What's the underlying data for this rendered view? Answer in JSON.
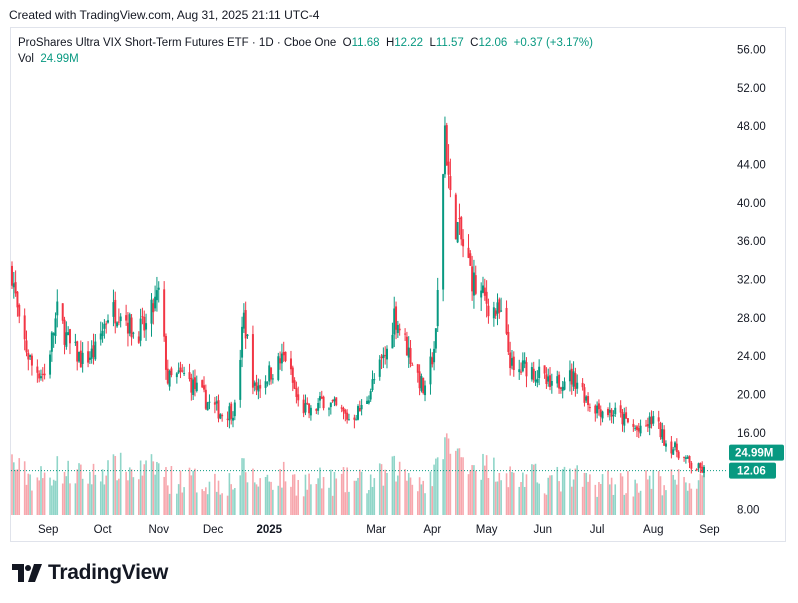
{
  "header": {
    "created_note": "Created with TradingView.com, Aug 31, 2025 21:11 UTC-4"
  },
  "legend": {
    "symbol": "ProShares Ultra VIX Short-Term Futures ETF · 1D · Cboe One",
    "o_label": "O",
    "o_value": "11.68",
    "h_label": "H",
    "h_value": "12.22",
    "l_label": "L",
    "l_value": "11.57",
    "c_label": "C",
    "c_value": "12.06",
    "change": "+0.37 (+3.17%)",
    "vol_label": "Vol",
    "vol_value": "24.99M"
  },
  "badges": {
    "volume": "24.99M",
    "price": "12.06"
  },
  "brand": {
    "name": "TradingView"
  },
  "colors": {
    "up": "#089981",
    "down": "#f23645",
    "up_vol": "#8fd5c8",
    "down_vol": "#f7a7ad",
    "axis_text": "#131722",
    "badge": "#089981"
  },
  "chart_data": {
    "type": "candlestick",
    "title": "ProShares Ultra VIX Short-Term Futures ETF · 1D · Cboe One",
    "y_axis": {
      "ticks": [
        8,
        12,
        16,
        20,
        24,
        28,
        32,
        36,
        40,
        44,
        48,
        52,
        56
      ],
      "tick_labels": [
        "8.00",
        "",
        "16.00",
        "20.00",
        "24.00",
        "28.00",
        "32.00",
        "36.00",
        "40.00",
        "44.00",
        "48.00",
        "52.00",
        "56.00"
      ],
      "range": [
        7,
        58
      ],
      "position": "right"
    },
    "x_axis": {
      "ticks": [
        "Sep",
        "Oct",
        "Nov",
        "Dec",
        "2025",
        "Mar",
        "Apr",
        "May",
        "Jun",
        "Jul",
        "Aug",
        "Sep"
      ]
    },
    "last": {
      "open": 11.68,
      "high": 12.22,
      "low": 11.57,
      "close": 12.06,
      "change": 0.37,
      "change_pct": 3.17,
      "volume": "24.99M"
    },
    "close_series": [
      {
        "date": "2024-08-12",
        "close": 33.0
      },
      {
        "date": "2024-08-16",
        "close": 27.0
      },
      {
        "date": "2024-08-23",
        "close": 23.0
      },
      {
        "date": "2024-08-30",
        "close": 22.0
      },
      {
        "date": "2024-09-06",
        "close": 28.5
      },
      {
        "date": "2024-09-13",
        "close": 25.0
      },
      {
        "date": "2024-09-20",
        "close": 23.5
      },
      {
        "date": "2024-09-27",
        "close": 24.5
      },
      {
        "date": "2024-10-04",
        "close": 28.5
      },
      {
        "date": "2024-10-11",
        "close": 29.0
      },
      {
        "date": "2024-10-18",
        "close": 26.5
      },
      {
        "date": "2024-10-25",
        "close": 27.0
      },
      {
        "date": "2024-11-01",
        "close": 30.5
      },
      {
        "date": "2024-11-06",
        "close": 21.5
      },
      {
        "date": "2024-11-15",
        "close": 22.0
      },
      {
        "date": "2024-11-22",
        "close": 20.5
      },
      {
        "date": "2024-11-29",
        "close": 19.0
      },
      {
        "date": "2024-12-06",
        "close": 18.0
      },
      {
        "date": "2024-12-13",
        "close": 18.5
      },
      {
        "date": "2024-12-18",
        "close": 28.0
      },
      {
        "date": "2024-12-24",
        "close": 20.5
      },
      {
        "date": "2024-12-31",
        "close": 22.0
      },
      {
        "date": "2025-01-10",
        "close": 24.0
      },
      {
        "date": "2025-01-17",
        "close": 19.0
      },
      {
        "date": "2025-01-24",
        "close": 18.0
      },
      {
        "date": "2025-01-31",
        "close": 19.5
      },
      {
        "date": "2025-02-07",
        "close": 18.5
      },
      {
        "date": "2025-02-14",
        "close": 17.5
      },
      {
        "date": "2025-02-21",
        "close": 18.5
      },
      {
        "date": "2025-02-28",
        "close": 21.5
      },
      {
        "date": "2025-03-07",
        "close": 24.5
      },
      {
        "date": "2025-03-11",
        "close": 28.5
      },
      {
        "date": "2025-03-21",
        "close": 23.5
      },
      {
        "date": "2025-03-28",
        "close": 20.0
      },
      {
        "date": "2025-04-03",
        "close": 26.0
      },
      {
        "date": "2025-04-08",
        "close": 48.0
      },
      {
        "date": "2025-04-11",
        "close": 40.0
      },
      {
        "date": "2025-04-17",
        "close": 36.0
      },
      {
        "date": "2025-04-25",
        "close": 31.0
      },
      {
        "date": "2025-05-02",
        "close": 29.5
      },
      {
        "date": "2025-05-09",
        "close": 28.0
      },
      {
        "date": "2025-05-16",
        "close": 22.0
      },
      {
        "date": "2025-05-23",
        "close": 23.0
      },
      {
        "date": "2025-05-30",
        "close": 22.0
      },
      {
        "date": "2025-06-06",
        "close": 20.5
      },
      {
        "date": "2025-06-13",
        "close": 22.0
      },
      {
        "date": "2025-06-20",
        "close": 21.5
      },
      {
        "date": "2025-06-27",
        "close": 19.0
      },
      {
        "date": "2025-07-03",
        "close": 18.5
      },
      {
        "date": "2025-07-11",
        "close": 18.0
      },
      {
        "date": "2025-07-18",
        "close": 17.0
      },
      {
        "date": "2025-07-25",
        "close": 16.0
      },
      {
        "date": "2025-08-01",
        "close": 17.5
      },
      {
        "date": "2025-08-08",
        "close": 15.0
      },
      {
        "date": "2025-08-15",
        "close": 14.0
      },
      {
        "date": "2025-08-22",
        "close": 12.5
      },
      {
        "date": "2025-08-29",
        "close": 12.06
      }
    ]
  }
}
